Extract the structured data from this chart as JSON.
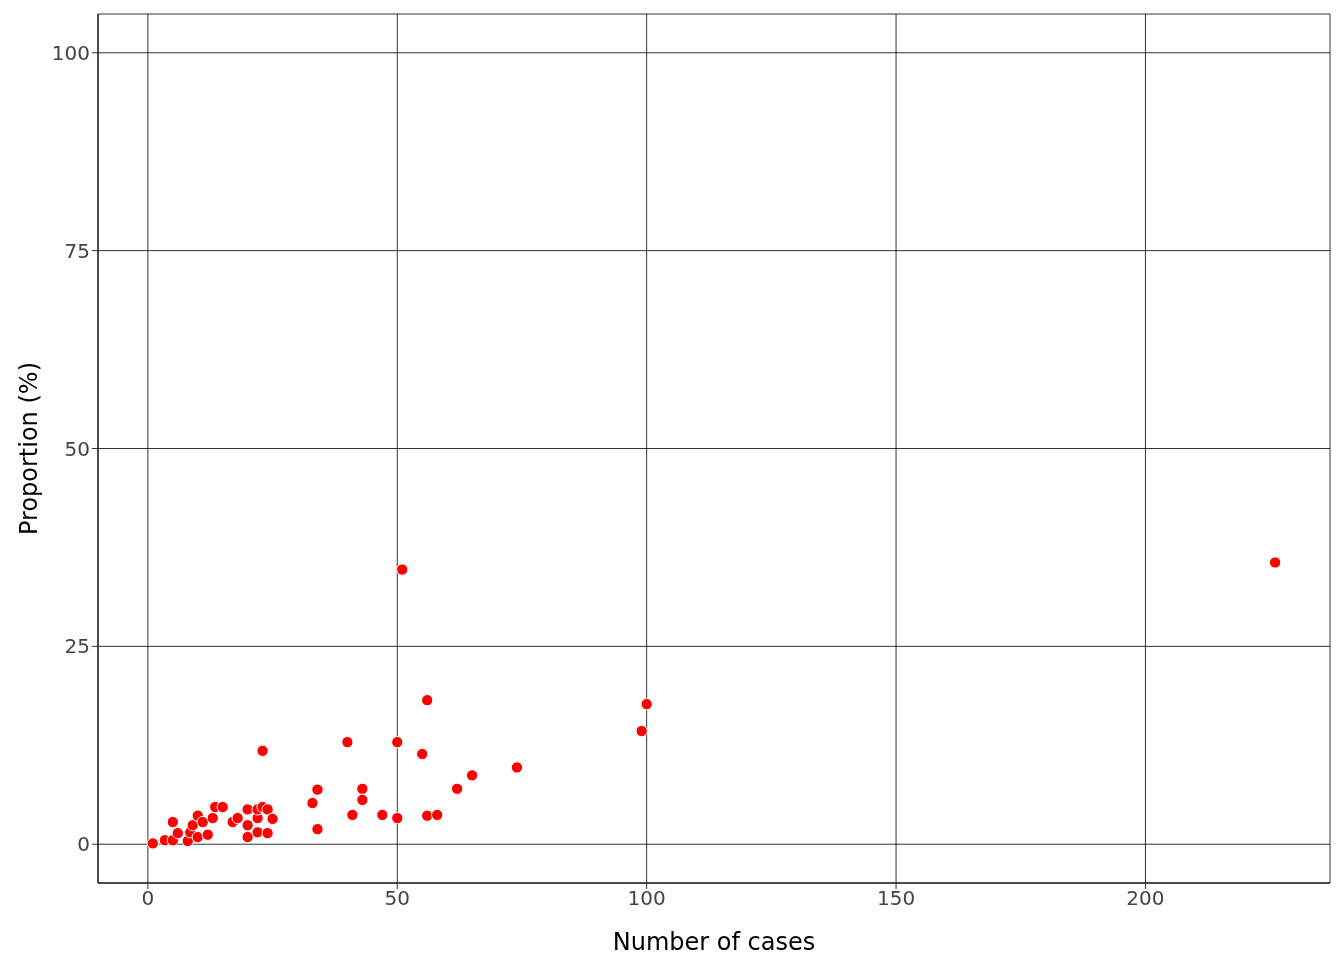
{
  "chart_data": {
    "type": "scatter",
    "xlabel": "Number of cases",
    "ylabel": "Proportion (%)",
    "xlim": [
      -10,
      237
    ],
    "ylim": [
      -4.9,
      104.9
    ],
    "xticks": [
      0,
      50,
      100,
      150,
      200
    ],
    "yticks": [
      0,
      25,
      50,
      75,
      100
    ],
    "grid": true,
    "marker": "circle",
    "series": [
      {
        "color": "#ff0000",
        "x": [
          1,
          3.4,
          5,
          5,
          6,
          8,
          8.5,
          9,
          10,
          10,
          11,
          12,
          13,
          13.5,
          15,
          17,
          18,
          20,
          20,
          20,
          22,
          22,
          22,
          23,
          23,
          24,
          24,
          25,
          33,
          34,
          34,
          40,
          41,
          43,
          43,
          47,
          50,
          50,
          51,
          55,
          56,
          56,
          58,
          62,
          65,
          74,
          99,
          100,
          226
        ],
        "values": [
          0.1,
          0.5,
          2.8,
          0.5,
          1.4,
          0.4,
          1.5,
          2.4,
          0.9,
          3.6,
          2.8,
          1.2,
          3.3,
          4.7,
          4.7,
          2.8,
          3.3,
          4.4,
          2.4,
          0.9,
          3.3,
          1.5,
          4.4,
          4.7,
          11.8,
          4.4,
          1.4,
          3.2,
          5.2,
          6.9,
          1.9,
          12.9,
          3.7,
          7,
          5.6,
          3.7,
          12.9,
          3.3,
          34.7,
          11.4,
          18.2,
          3.6,
          3.7,
          7,
          8.7,
          9.7,
          14.3,
          17.7,
          35.6
        ]
      }
    ]
  }
}
